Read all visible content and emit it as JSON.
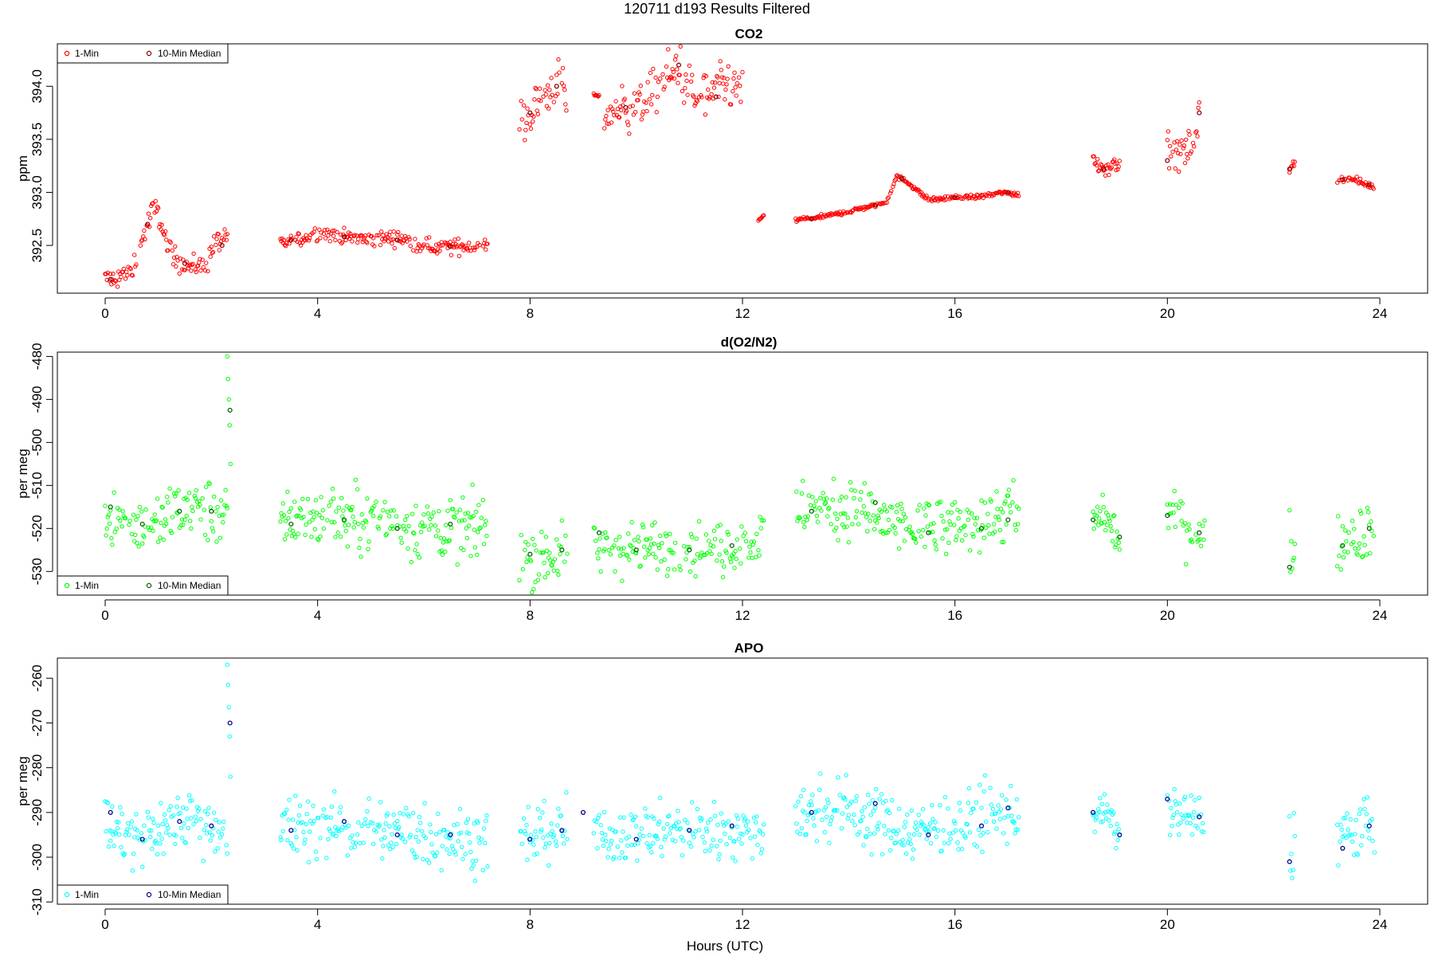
{
  "figure": {
    "title": "120711    d193    Results Filtered",
    "xlabel": "Hours (UTC)"
  },
  "chart_data": [
    {
      "type": "scatter",
      "title": "CO2",
      "xlabel": "",
      "ylabel": "ppm",
      "xlim": [
        -0.9,
        24.9
      ],
      "ylim": [
        392.05,
        394.4
      ],
      "xticks": [
        0,
        4,
        8,
        12,
        16,
        20,
        24
      ],
      "yticks": [
        392.5,
        393.0,
        393.5,
        394.0
      ],
      "ytick_labels": [
        "392.5",
        "393.0",
        "393.5",
        "394.0"
      ],
      "legend_position": "top-left",
      "series": [
        {
          "name": "1-Min",
          "color": "#ff0000",
          "segments": [
            {
              "x": [
                0.0,
                0.3,
                0.5,
                0.7,
                0.9,
                1.0,
                1.2,
                1.4,
                1.6,
                1.9,
                2.1,
                2.3
              ],
              "y": [
                392.18,
                392.2,
                392.25,
                392.55,
                392.85,
                392.8,
                392.45,
                392.35,
                392.3,
                392.32,
                392.55,
                392.55
              ],
              "noise": 0.07
            },
            {
              "x": [
                3.3,
                3.6,
                4.0,
                4.5,
                5.0,
                5.5,
                5.8,
                6.2,
                6.6,
                7.0,
                7.2
              ],
              "y": [
                392.5,
                392.55,
                392.62,
                392.58,
                392.55,
                392.58,
                392.52,
                392.48,
                392.49,
                392.5,
                392.5
              ],
              "noise": 0.05
            },
            {
              "x": [
                7.8,
                8.2,
                8.5,
                8.7
              ],
              "y": [
                393.65,
                393.85,
                394.05,
                393.85
              ],
              "noise": 0.16
            },
            {
              "x": [
                9.2,
                9.3
              ],
              "y": [
                393.92,
                393.9
              ],
              "noise": 0.01
            },
            {
              "x": [
                9.4,
                9.8,
                10.2,
                10.5,
                10.8,
                11.1,
                11.4,
                11.7,
                12.0
              ],
              "y": [
                393.75,
                393.8,
                393.85,
                394.05,
                394.2,
                393.85,
                393.9,
                394.0,
                393.95
              ],
              "noise": 0.16
            },
            {
              "x": [
                12.3,
                12.4
              ],
              "y": [
                392.73,
                392.78
              ],
              "noise": 0.01
            },
            {
              "x": [
                13.0,
                13.5,
                14.0,
                14.5,
                14.7,
                14.9,
                15.1,
                15.5,
                16.0,
                16.5,
                16.9,
                17.2
              ],
              "y": [
                392.74,
                392.77,
                392.82,
                392.88,
                392.9,
                393.15,
                393.1,
                392.93,
                392.95,
                392.96,
                393.0,
                392.98
              ],
              "noise": 0.015
            },
            {
              "x": [
                18.6,
                18.8,
                19.1
              ],
              "y": [
                393.32,
                393.22,
                393.3
              ],
              "noise": 0.06
            },
            {
              "x": [
                20.0,
                20.4,
                20.6
              ],
              "y": [
                393.35,
                393.4,
                393.7
              ],
              "noise": 0.14
            },
            {
              "x": [
                22.3,
                22.4
              ],
              "y": [
                393.22,
                393.28
              ],
              "noise": 0.04
            },
            {
              "x": [
                23.2,
                23.5,
                23.9
              ],
              "y": [
                393.12,
                393.12,
                393.05
              ],
              "noise": 0.02
            }
          ]
        },
        {
          "name": "10-Min Median",
          "color": "#8b0000",
          "points": [
            [
              0.1,
              392.18
            ],
            [
              0.8,
              392.7
            ],
            [
              1.5,
              392.33
            ],
            [
              2.2,
              392.5
            ],
            [
              3.5,
              392.55
            ],
            [
              4.5,
              392.58
            ],
            [
              5.5,
              392.55
            ],
            [
              6.5,
              392.49
            ],
            [
              8.0,
              393.75
            ],
            [
              8.5,
              394.0
            ],
            [
              9.8,
              393.8
            ],
            [
              10.8,
              394.2
            ],
            [
              11.5,
              393.9
            ],
            [
              13.3,
              392.75
            ],
            [
              14.5,
              392.88
            ],
            [
              15.0,
              393.13
            ],
            [
              16.0,
              392.95
            ],
            [
              17.0,
              393.0
            ],
            [
              18.8,
              393.22
            ],
            [
              20.0,
              393.3
            ],
            [
              20.6,
              393.75
            ],
            [
              22.3,
              393.22
            ],
            [
              23.3,
              393.12
            ],
            [
              23.8,
              393.07
            ]
          ]
        }
      ]
    },
    {
      "type": "scatter",
      "title": "d(O2/N2)",
      "xlabel": "",
      "ylabel": "per meg",
      "xlim": [
        -0.9,
        24.9
      ],
      "ylim": [
        -535.5,
        -479
      ],
      "xticks": [
        0,
        4,
        8,
        12,
        16,
        20,
        24
      ],
      "yticks": [
        -480,
        -490,
        -500,
        -510,
        -520,
        -530
      ],
      "ytick_labels": [
        "-480",
        "-490",
        "-500",
        "-510",
        "-520",
        "-530"
      ],
      "legend_position": "bottom-left",
      "series": [
        {
          "name": "1-Min",
          "color": "#00ff00",
          "segments": [
            {
              "x": [
                0.0,
                0.5,
                1.0,
                1.5,
                2.0,
                2.3
              ],
              "y": [
                -516,
                -519,
                -519,
                -514,
                -516,
                -516
              ],
              "noise": 5
            },
            {
              "x": [
                2.3,
                2.32,
                2.34,
                2.36
              ],
              "y": [
                -480,
                -487,
                -493,
                -505
              ],
              "noise": 0
            },
            {
              "x": [
                3.3,
                4.0,
                5.0,
                6.0,
                7.0,
                7.2
              ],
              "y": [
                -518,
                -517,
                -518,
                -520,
                -520,
                -520
              ],
              "noise": 5
            },
            {
              "x": [
                7.8,
                8.3,
                8.7
              ],
              "y": [
                -526,
                -526,
                -526
              ],
              "noise": 5
            },
            {
              "x": [
                9.2,
                10.0,
                11.0,
                12.0,
                12.4
              ],
              "y": [
                -525,
                -524,
                -525,
                -524,
                -522
              ],
              "noise": 4.5
            },
            {
              "x": [
                13.0,
                14.0,
                15.0,
                16.0,
                17.0,
                17.2
              ],
              "y": [
                -516,
                -515,
                -520,
                -520,
                -516,
                -517
              ],
              "noise": 5
            },
            {
              "x": [
                18.6,
                18.8,
                19.1
              ],
              "y": [
                -518,
                -517,
                -523
              ],
              "noise": 3
            },
            {
              "x": [
                20.0,
                20.4,
                20.7
              ],
              "y": [
                -516,
                -520,
                -522
              ],
              "noise": 4
            },
            {
              "x": [
                22.3,
                22.4
              ],
              "y": [
                -524,
                -526
              ],
              "noise": 5
            },
            {
              "x": [
                23.2,
                23.5,
                23.9
              ],
              "y": [
                -524,
                -522,
                -519
              ],
              "noise": 5
            }
          ]
        },
        {
          "name": "10-Min Median",
          "color": "#006400",
          "points": [
            [
              0.1,
              -515
            ],
            [
              0.7,
              -519
            ],
            [
              1.4,
              -516
            ],
            [
              2.0,
              -516
            ],
            [
              2.35,
              -492.5
            ],
            [
              3.5,
              -519
            ],
            [
              4.5,
              -518
            ],
            [
              5.5,
              -520
            ],
            [
              6.5,
              -519
            ],
            [
              8.0,
              -526
            ],
            [
              8.6,
              -525
            ],
            [
              9.3,
              -521
            ],
            [
              10.0,
              -525
            ],
            [
              11.0,
              -525
            ],
            [
              11.8,
              -524
            ],
            [
              13.3,
              -516
            ],
            [
              14.5,
              -514
            ],
            [
              15.5,
              -521
            ],
            [
              16.5,
              -520
            ],
            [
              17.0,
              -518
            ],
            [
              18.6,
              -518
            ],
            [
              19.1,
              -522
            ],
            [
              20.0,
              -517
            ],
            [
              20.6,
              -521
            ],
            [
              22.3,
              -529
            ],
            [
              23.3,
              -524
            ],
            [
              23.8,
              -520
            ]
          ]
        }
      ]
    },
    {
      "type": "scatter",
      "title": "APO",
      "xlabel": "Hours (UTC)",
      "ylabel": "per meg",
      "xlim": [
        -0.9,
        24.9
      ],
      "ylim": [
        -310.5,
        -255.5
      ],
      "xticks": [
        0,
        4,
        8,
        12,
        16,
        20,
        24
      ],
      "yticks": [
        -260,
        -270,
        -280,
        -290,
        -300,
        -310
      ],
      "ytick_labels": [
        "-260",
        "-270",
        "-280",
        "-290",
        "-300",
        "-310"
      ],
      "legend_position": "bottom-left",
      "series": [
        {
          "name": "1-Min",
          "color": "#00ffff",
          "segments": [
            {
              "x": [
                0.0,
                0.5,
                1.0,
                1.5,
                2.0,
                2.3
              ],
              "y": [
                -293,
                -296,
                -294,
                -291,
                -292,
                -294
              ],
              "noise": 5
            },
            {
              "x": [
                2.3,
                2.32,
                2.34,
                2.36
              ],
              "y": [
                -257,
                -263,
                -270,
                -282
              ],
              "noise": 0
            },
            {
              "x": [
                3.3,
                4.0,
                5.0,
                6.0,
                7.0,
                7.2
              ],
              "y": [
                -294,
                -293,
                -294,
                -295,
                -296,
                -296
              ],
              "noise": 5
            },
            {
              "x": [
                7.8,
                8.3,
                8.7
              ],
              "y": [
                -296,
                -294,
                -294
              ],
              "noise": 5
            },
            {
              "x": [
                9.2,
                10.0,
                11.0,
                12.0,
                12.4
              ],
              "y": [
                -295,
                -295,
                -294,
                -294,
                -295
              ],
              "noise": 4.5
            },
            {
              "x": [
                13.0,
                14.0,
                15.0,
                16.0,
                17.0,
                17.2
              ],
              "y": [
                -290,
                -289,
                -294,
                -293,
                -290,
                -291
              ],
              "noise": 5
            },
            {
              "x": [
                18.6,
                18.8,
                19.1
              ],
              "y": [
                -291,
                -290,
                -295
              ],
              "noise": 3
            },
            {
              "x": [
                20.0,
                20.4,
                20.7
              ],
              "y": [
                -289,
                -291,
                -292
              ],
              "noise": 4
            },
            {
              "x": [
                22.3,
                22.4
              ],
              "y": [
                -298,
                -296
              ],
              "noise": 6
            },
            {
              "x": [
                23.2,
                23.5,
                23.9
              ],
              "y": [
                -295,
                -294,
                -293
              ],
              "noise": 5
            }
          ]
        },
        {
          "name": "10-Min Median",
          "color": "#00008b",
          "points": [
            [
              0.1,
              -290
            ],
            [
              0.7,
              -296
            ],
            [
              1.4,
              -292
            ],
            [
              2.0,
              -293
            ],
            [
              2.35,
              -270
            ],
            [
              3.5,
              -294
            ],
            [
              4.5,
              -292
            ],
            [
              5.5,
              -295
            ],
            [
              6.5,
              -295
            ],
            [
              8.0,
              -296
            ],
            [
              8.6,
              -294
            ],
            [
              9.0,
              -290
            ],
            [
              10.0,
              -296
            ],
            [
              11.0,
              -294
            ],
            [
              11.8,
              -293
            ],
            [
              13.3,
              -290
            ],
            [
              14.5,
              -288
            ],
            [
              15.5,
              -295
            ],
            [
              16.5,
              -293
            ],
            [
              17.0,
              -289
            ],
            [
              18.6,
              -290
            ],
            [
              19.1,
              -295
            ],
            [
              20.0,
              -287
            ],
            [
              20.6,
              -291
            ],
            [
              22.3,
              -301
            ],
            [
              23.3,
              -298
            ],
            [
              23.8,
              -293
            ]
          ]
        }
      ]
    }
  ]
}
